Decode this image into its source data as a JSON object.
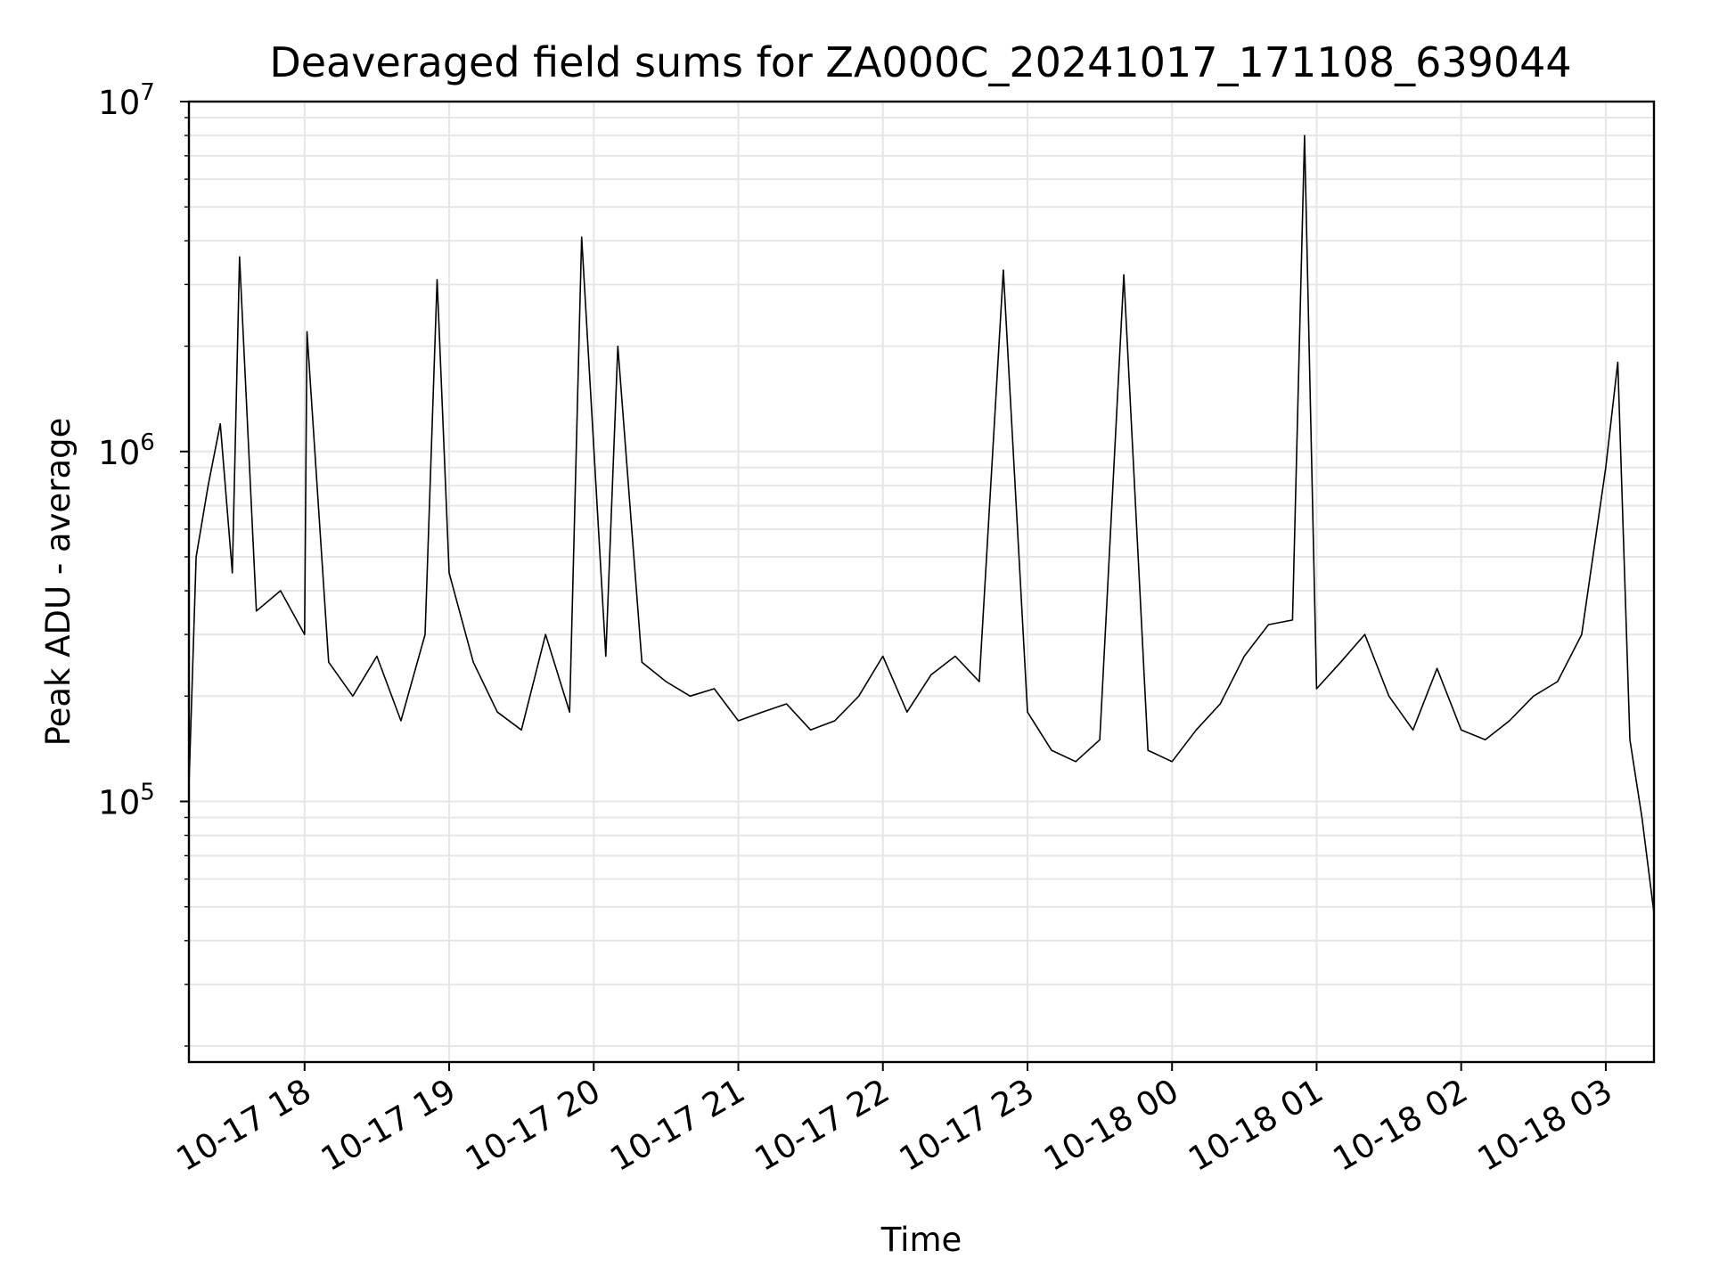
{
  "chart_data": {
    "type": "line",
    "title": "Deaveraged field sums for ZA000C_20241017_171108_639044",
    "xlabel": "Time",
    "ylabel": "Peak ADU - average",
    "yscale": "log",
    "ylim": [
      18000,
      10000000
    ],
    "xlim": [
      "2024-10-17 17:12",
      "2024-10-18 03:20"
    ],
    "grid": true,
    "line_color": "#000000",
    "grid_color": "#e6e6e6",
    "x_ticks": [
      {
        "value": "2024-10-17 18:00",
        "label": "10-17 18"
      },
      {
        "value": "2024-10-17 19:00",
        "label": "10-17 19"
      },
      {
        "value": "2024-10-17 20:00",
        "label": "10-17 20"
      },
      {
        "value": "2024-10-17 21:00",
        "label": "10-17 21"
      },
      {
        "value": "2024-10-17 22:00",
        "label": "10-17 22"
      },
      {
        "value": "2024-10-17 23:00",
        "label": "10-17 23"
      },
      {
        "value": "2024-10-18 00:00",
        "label": "10-18 00"
      },
      {
        "value": "2024-10-18 01:00",
        "label": "10-18 01"
      },
      {
        "value": "2024-10-18 02:00",
        "label": "10-18 02"
      },
      {
        "value": "2024-10-18 03:00",
        "label": "10-18 03"
      }
    ],
    "y_ticks": [
      {
        "value": 100000,
        "base": "10",
        "exp": "5"
      },
      {
        "value": 1000000,
        "base": "10",
        "exp": "6"
      },
      {
        "value": 10000000,
        "base": "10",
        "exp": "7"
      }
    ],
    "series": [
      {
        "x": [
          "2024-10-17 17:12",
          "2024-10-17 17:15",
          "2024-10-17 17:20",
          "2024-10-17 17:25",
          "2024-10-17 17:30",
          "2024-10-17 17:33",
          "2024-10-17 17:40",
          "2024-10-17 17:50",
          "2024-10-17 18:00",
          "2024-10-17 18:01",
          "2024-10-17 18:10",
          "2024-10-17 18:20",
          "2024-10-17 18:30",
          "2024-10-17 18:40",
          "2024-10-17 18:50",
          "2024-10-17 18:55",
          "2024-10-17 19:00",
          "2024-10-17 19:10",
          "2024-10-17 19:20",
          "2024-10-17 19:30",
          "2024-10-17 19:40",
          "2024-10-17 19:50",
          "2024-10-17 19:55",
          "2024-10-17 20:05",
          "2024-10-17 20:10",
          "2024-10-17 20:20",
          "2024-10-17 20:30",
          "2024-10-17 20:40",
          "2024-10-17 20:50",
          "2024-10-17 21:00",
          "2024-10-17 21:10",
          "2024-10-17 21:20",
          "2024-10-17 21:30",
          "2024-10-17 21:40",
          "2024-10-17 21:50",
          "2024-10-17 22:00",
          "2024-10-17 22:10",
          "2024-10-17 22:20",
          "2024-10-17 22:30",
          "2024-10-17 22:40",
          "2024-10-17 22:50",
          "2024-10-17 23:00",
          "2024-10-17 23:10",
          "2024-10-17 23:20",
          "2024-10-17 23:30",
          "2024-10-17 23:40",
          "2024-10-17 23:50",
          "2024-10-18 00:00",
          "2024-10-18 00:10",
          "2024-10-18 00:20",
          "2024-10-18 00:30",
          "2024-10-18 00:40",
          "2024-10-18 00:50",
          "2024-10-18 00:55",
          "2024-10-18 01:00",
          "2024-10-18 01:10",
          "2024-10-18 01:20",
          "2024-10-18 01:30",
          "2024-10-18 01:40",
          "2024-10-18 01:50",
          "2024-10-18 02:00",
          "2024-10-18 02:10",
          "2024-10-18 02:20",
          "2024-10-18 02:30",
          "2024-10-18 02:40",
          "2024-10-18 02:50",
          "2024-10-18 03:00",
          "2024-10-18 03:05",
          "2024-10-18 03:10",
          "2024-10-18 03:15",
          "2024-10-18 03:20"
        ],
        "y": [
          110000,
          500000,
          800000,
          1200000,
          450000,
          3600000,
          350000,
          400000,
          300000,
          2200000,
          250000,
          200000,
          260000,
          170000,
          300000,
          3100000,
          450000,
          250000,
          180000,
          160000,
          300000,
          180000,
          4100000,
          260000,
          2000000,
          250000,
          220000,
          200000,
          210000,
          170000,
          180000,
          190000,
          160000,
          170000,
          200000,
          260000,
          180000,
          230000,
          260000,
          220000,
          3300000,
          180000,
          140000,
          130000,
          150000,
          3200000,
          140000,
          130000,
          160000,
          190000,
          260000,
          320000,
          330000,
          8000000,
          210000,
          250000,
          300000,
          200000,
          160000,
          240000,
          160000,
          150000,
          170000,
          200000,
          220000,
          300000,
          900000,
          1800000,
          150000,
          90000,
          48000
        ]
      }
    ]
  }
}
